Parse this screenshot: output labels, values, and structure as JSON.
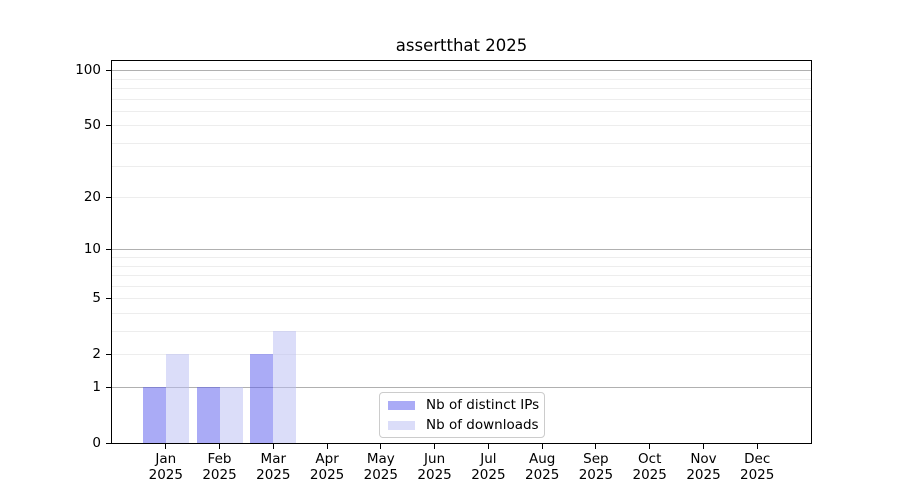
{
  "title": "assertthat 2025",
  "chart_data": {
    "type": "bar",
    "title": "assertthat 2025",
    "categories": [
      {
        "month": "Jan",
        "year": "2025"
      },
      {
        "month": "Feb",
        "year": "2025"
      },
      {
        "month": "Mar",
        "year": "2025"
      },
      {
        "month": "Apr",
        "year": "2025"
      },
      {
        "month": "May",
        "year": "2025"
      },
      {
        "month": "Jun",
        "year": "2025"
      },
      {
        "month": "Jul",
        "year": "2025"
      },
      {
        "month": "Aug",
        "year": "2025"
      },
      {
        "month": "Sep",
        "year": "2025"
      },
      {
        "month": "Oct",
        "year": "2025"
      },
      {
        "month": "Nov",
        "year": "2025"
      },
      {
        "month": "Dec",
        "year": "2025"
      }
    ],
    "series": [
      {
        "name": "Nb of distinct IPs",
        "color": "rgba(85,87,237,0.5)",
        "values": [
          1,
          1,
          2,
          0,
          0,
          0,
          0,
          0,
          0,
          0,
          0,
          0
        ]
      },
      {
        "name": "Nb of downloads",
        "color": "rgba(184,188,243,0.5)",
        "values": [
          2,
          1,
          3,
          0,
          0,
          0,
          0,
          0,
          0,
          0,
          0,
          0
        ]
      }
    ],
    "y_axis": {
      "scale": "log1p",
      "tick_labels": [
        0,
        1,
        2,
        5,
        10,
        20,
        50,
        100
      ],
      "major_gridlines": [
        1,
        10,
        100
      ],
      "minor_gridlines": [
        2,
        3,
        4,
        5,
        6,
        7,
        8,
        9,
        20,
        30,
        40,
        50,
        60,
        70,
        80,
        90
      ],
      "range": [
        0,
        112
      ]
    },
    "x_axis": {
      "label_format": "month-over-year"
    },
    "legend": {
      "position": "lower center"
    },
    "colors": {
      "major_grid": "#b0b0b0",
      "minor_grid": "#ededed",
      "axis": "#000000",
      "text": "#000000",
      "background": "#ffffff"
    }
  }
}
